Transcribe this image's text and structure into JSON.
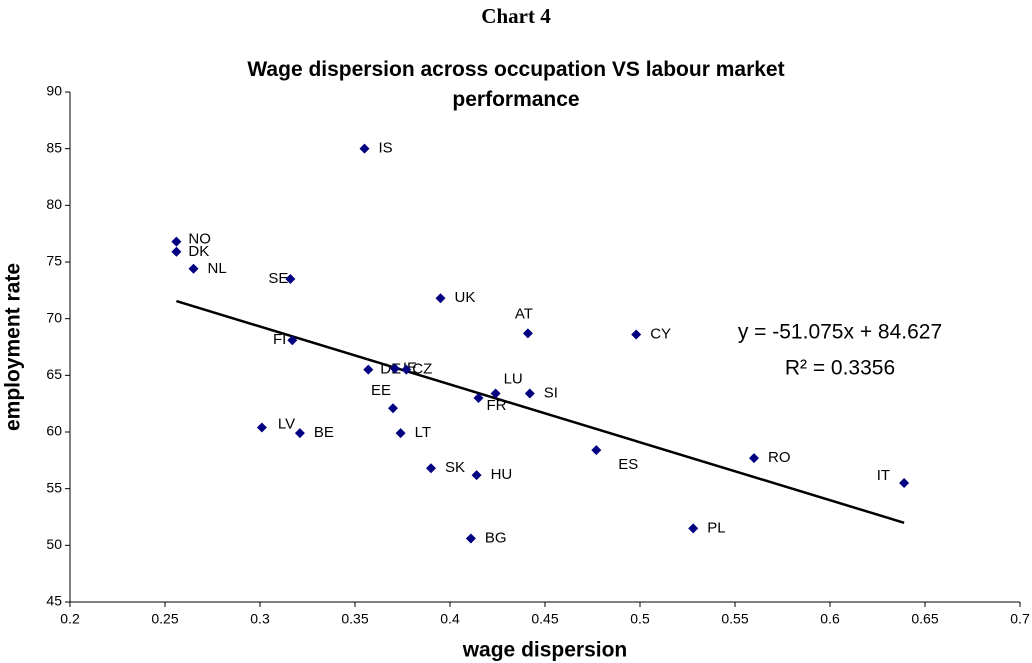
{
  "chart_data": {
    "type": "scatter",
    "heading": "Chart 4",
    "title": "Wage dispersion across occupation VS labour market performance",
    "x_label": "wage dispersion",
    "y_label": "employment rate",
    "marker_color": "#000080",
    "xlim": [
      0.2,
      0.7
    ],
    "xticks": [
      0.2,
      0.25,
      0.3,
      0.35,
      0.4,
      0.45,
      0.5,
      0.55,
      0.6,
      0.65,
      0.7
    ],
    "ylim": [
      45,
      90
    ],
    "yticks": [
      45,
      50,
      55,
      60,
      65,
      70,
      75,
      80,
      85,
      90
    ],
    "labels": [
      "IS",
      "NO",
      "DK",
      "NL",
      "SE",
      "UK",
      "AT",
      "CY",
      "FI",
      "DE",
      "IE",
      "CZ",
      "LU",
      "SI",
      "FR",
      "EE",
      "LV",
      "BE",
      "LT",
      "ES",
      "RO",
      "SK",
      "HU",
      "IT",
      "PL",
      "BG"
    ],
    "x": [
      0.355,
      0.256,
      0.256,
      0.265,
      0.316,
      0.395,
      0.441,
      0.498,
      0.317,
      0.357,
      0.371,
      0.377,
      0.424,
      0.442,
      0.415,
      0.37,
      0.301,
      0.321,
      0.374,
      0.477,
      0.56,
      0.39,
      0.414,
      0.639,
      0.528,
      0.411
    ],
    "y": [
      85,
      76.8,
      75.9,
      74.4,
      73.5,
      71.8,
      68.7,
      68.6,
      68.1,
      65.5,
      65.6,
      65.5,
      63.4,
      63.4,
      63.0,
      62.1,
      60.4,
      59.9,
      59.9,
      58.4,
      57.7,
      56.8,
      56.2,
      55.5,
      51.5,
      50.6
    ],
    "trendline": {
      "slope": -51.075,
      "intercept": 84.627,
      "color": "#000000",
      "equation": "y = -51.075x + 84.627",
      "r_squared": "R² = 0.3356"
    }
  }
}
